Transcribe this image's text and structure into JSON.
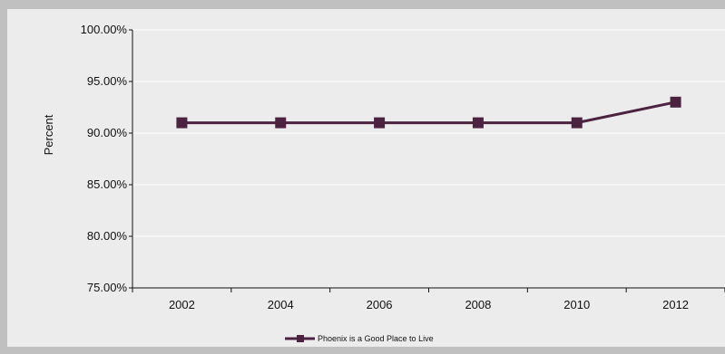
{
  "chart_data": {
    "type": "line",
    "title": "",
    "xlabel": "",
    "ylabel": "Percent",
    "categories": [
      "2002",
      "2004",
      "2006",
      "2008",
      "2010",
      "2012"
    ],
    "series": [
      {
        "name": "Phoenix is a Good Place to Live",
        "values": [
          91.0,
          91.0,
          91.0,
          91.0,
          91.0,
          93.0
        ],
        "color": "#4b2340",
        "marker": "square"
      }
    ],
    "ylim": [
      75,
      100
    ],
    "yticks": [
      75,
      80,
      85,
      90,
      95,
      100
    ],
    "ytick_labels": [
      "75.00%",
      "80.00%",
      "85.00%",
      "90.00%",
      "95.00%",
      "100.00%"
    ],
    "grid": true,
    "legend_position": "bottom-center"
  }
}
